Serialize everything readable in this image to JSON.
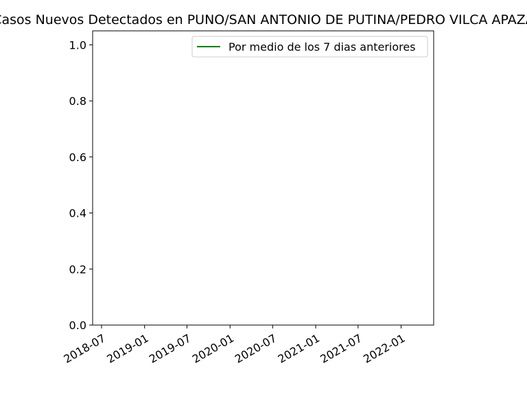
{
  "chart_data": {
    "type": "line",
    "title": "Casos Nuevos Detectados en PUNO/SAN ANTONIO DE PUTINA/PEDRO VILCA APAZA",
    "xlabel": "",
    "ylabel": "",
    "x_axis_type": "date",
    "xlim": [
      "2018-05-24",
      "2022-05-20"
    ],
    "ylim": [
      0,
      1.05
    ],
    "x_ticks": [
      "2018-07",
      "2019-01",
      "2019-07",
      "2020-01",
      "2020-07",
      "2021-01",
      "2021-07",
      "2022-01"
    ],
    "y_ticks": [
      "0.0",
      "0.2",
      "0.4",
      "0.6",
      "0.8",
      "1.0"
    ],
    "grid": false,
    "legend_position": "top-right",
    "series": [
      {
        "name": "Por medio de los 7 dias anteriores",
        "color": "#008000",
        "x": [],
        "y": []
      }
    ]
  }
}
